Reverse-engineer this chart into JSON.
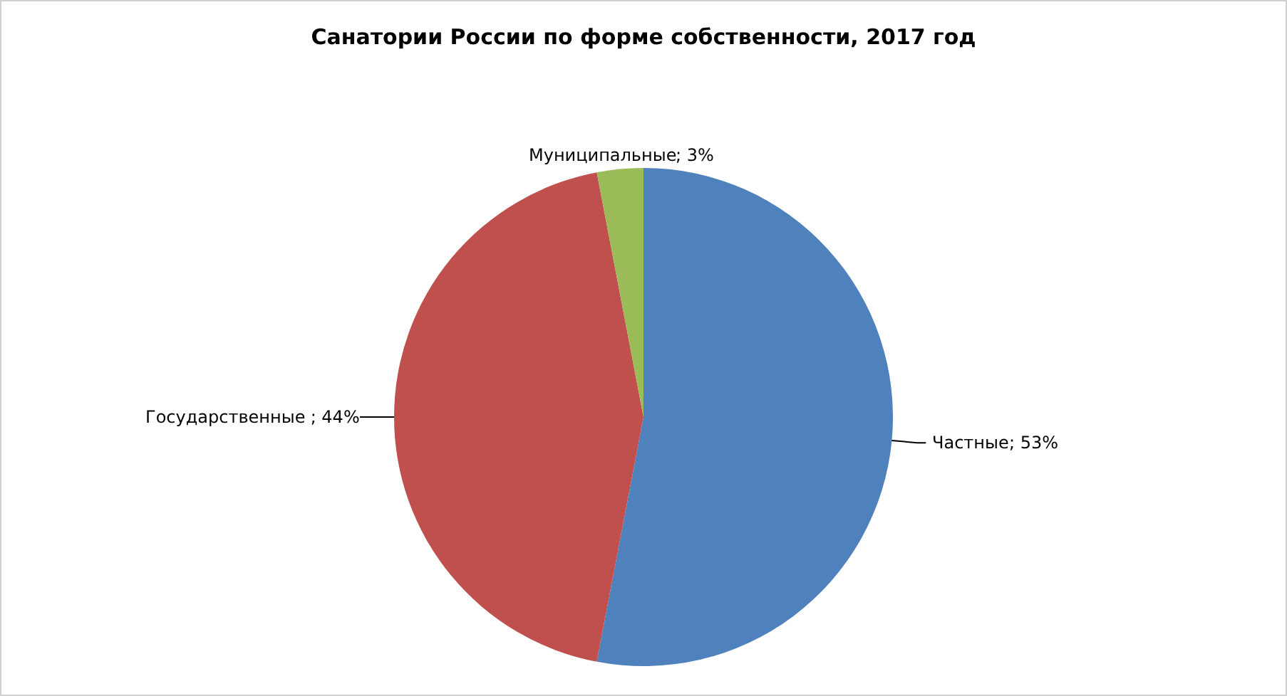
{
  "chart_data": {
    "type": "pie",
    "title": "Санатории России по форме собственности, 2017 год",
    "categories": [
      "Частные",
      "Государственные",
      "Муниципальные"
    ],
    "values": [
      53,
      44,
      3
    ],
    "colors": [
      "#4f81bd",
      "#c0504d",
      "#9bbb59"
    ],
    "value_labels": [
      "; 53%",
      " ; 44%",
      "; 3%"
    ]
  }
}
